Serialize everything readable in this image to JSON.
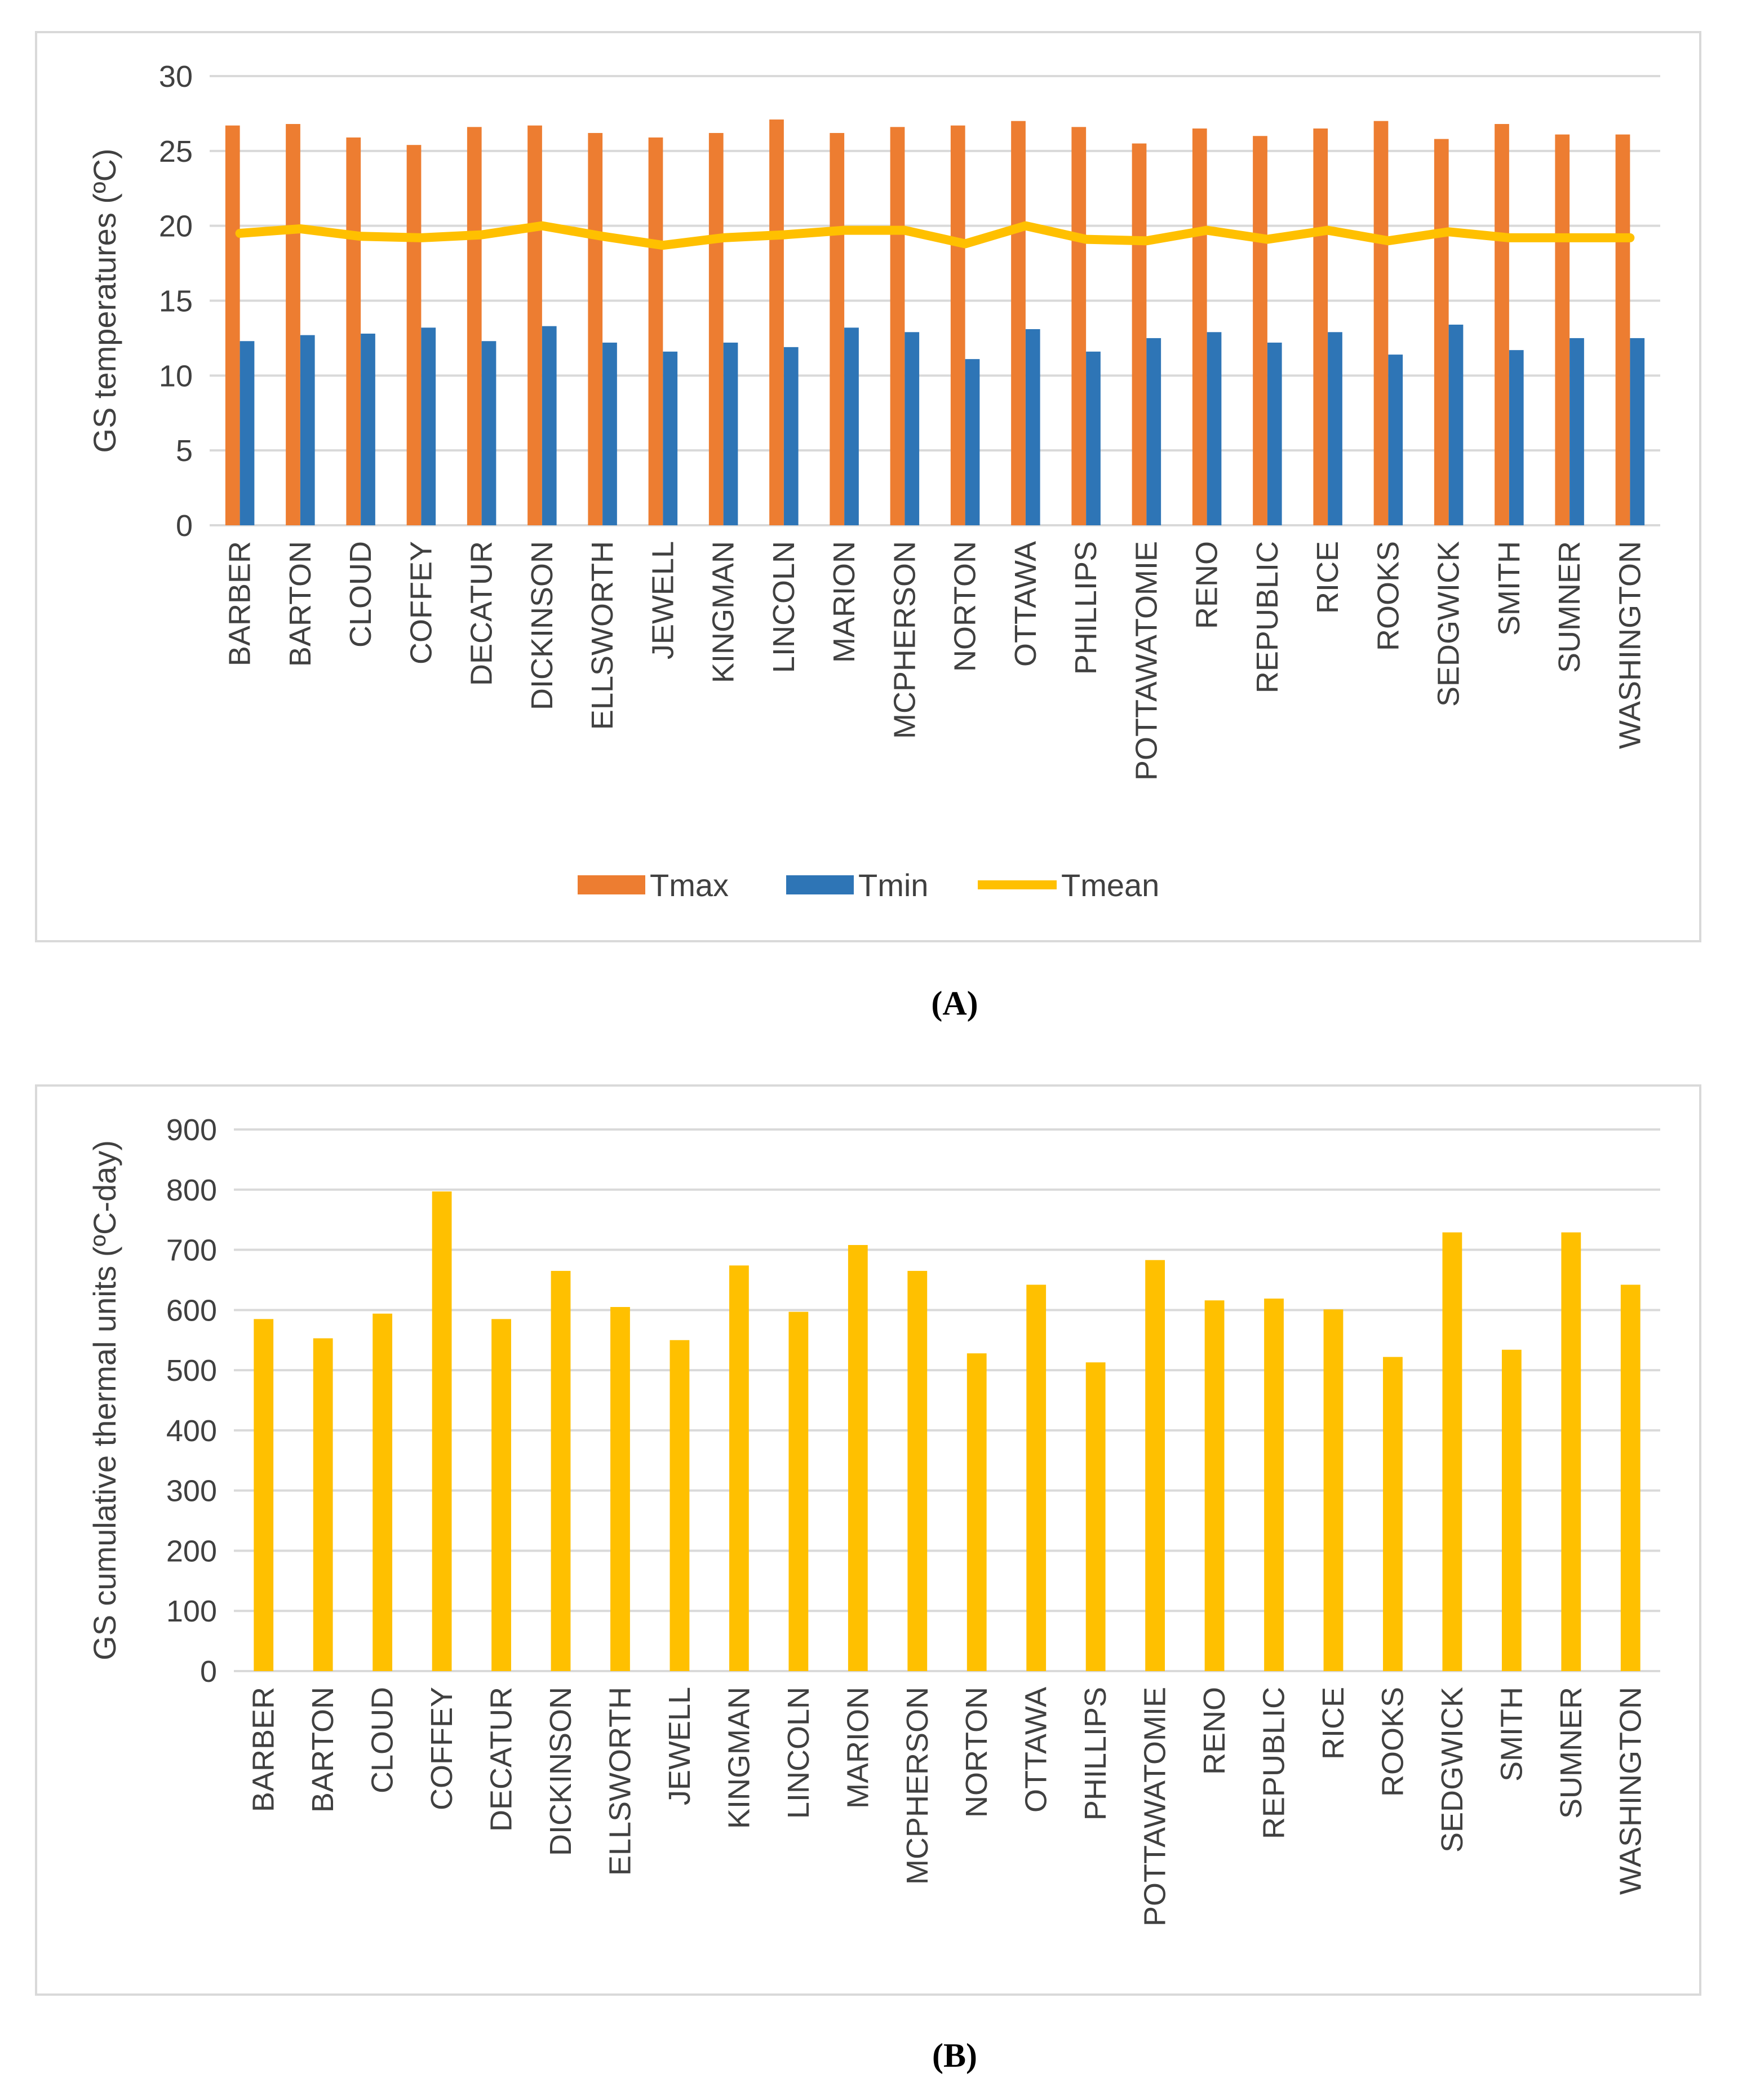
{
  "chart_data": [
    {
      "type": "bar",
      "panel": "(A)",
      "caption_letter": "A",
      "ylabel": "GS temperatures (ºC)",
      "xlabel": "",
      "ylim": [
        0,
        30
      ],
      "yticks": [
        0,
        5,
        10,
        15,
        20,
        25,
        30
      ],
      "grid": true,
      "legend_position": "bottom",
      "categories": [
        "BARBER",
        "BARTON",
        "CLOUD",
        "COFFEY",
        "DECATUR",
        "DICKINSON",
        "ELLSWORTH",
        "JEWELL",
        "KINGMAN",
        "LINCOLN",
        "MARION",
        "MCPHERSON",
        "NORTON",
        "OTTAWA",
        "PHILLIPS",
        "POTTAWATOMIE",
        "RENO",
        "REPUBLIC",
        "RICE",
        "ROOKS",
        "SEDGWICK",
        "SMITH",
        "SUMNER",
        "WASHINGTON"
      ],
      "series": [
        {
          "name": "Tmax",
          "kind": "bar",
          "color": "#ED7D31",
          "values": [
            26.7,
            26.8,
            25.9,
            25.4,
            26.6,
            26.7,
            26.2,
            25.9,
            26.2,
            27.1,
            26.2,
            26.6,
            26.7,
            27.0,
            26.6,
            25.5,
            26.5,
            26.0,
            26.5,
            27.0,
            25.8,
            26.8,
            26.1,
            26.1
          ]
        },
        {
          "name": "Tmin",
          "kind": "bar",
          "color": "#2E75B6",
          "values": [
            12.3,
            12.7,
            12.8,
            13.2,
            12.3,
            13.3,
            12.2,
            11.6,
            12.2,
            11.9,
            13.2,
            12.9,
            11.1,
            13.1,
            11.6,
            12.5,
            12.9,
            12.2,
            12.9,
            11.4,
            13.4,
            11.7,
            12.5,
            12.5
          ]
        },
        {
          "name": "Tmean",
          "kind": "line",
          "color": "#FFC000",
          "values": [
            19.5,
            19.8,
            19.3,
            19.2,
            19.4,
            20.0,
            19.3,
            18.7,
            19.2,
            19.4,
            19.7,
            19.7,
            18.8,
            20.0,
            19.1,
            19.0,
            19.7,
            19.1,
            19.7,
            19.0,
            19.6,
            19.2,
            19.2,
            19.2
          ]
        }
      ]
    },
    {
      "type": "bar",
      "panel": "(B)",
      "caption_letter": "B",
      "ylabel": "GS cumulative thermal units (ºC-day)",
      "xlabel": "",
      "ylim": [
        0,
        900
      ],
      "yticks": [
        0,
        100,
        200,
        300,
        400,
        500,
        600,
        700,
        800,
        900
      ],
      "grid": true,
      "categories": [
        "BARBER",
        "BARTON",
        "CLOUD",
        "COFFEY",
        "DECATUR",
        "DICKINSON",
        "ELLSWORTH",
        "JEWELL",
        "KINGMAN",
        "LINCOLN",
        "MARION",
        "MCPHERSON",
        "NORTON",
        "OTTAWA",
        "PHILLIPS",
        "POTTAWATOMIE",
        "RENO",
        "REPUBLIC",
        "RICE",
        "ROOKS",
        "SEDGWICK",
        "SMITH",
        "SUMNER",
        "WASHINGTON"
      ],
      "series": [
        {
          "name": "GS cumulative thermal units",
          "kind": "bar",
          "color": "#FFC000",
          "values": [
            585,
            553,
            594,
            797,
            585,
            665,
            605,
            550,
            674,
            597,
            708,
            665,
            528,
            642,
            513,
            683,
            616,
            619,
            601,
            522,
            729,
            534,
            729,
            642
          ]
        }
      ]
    }
  ]
}
